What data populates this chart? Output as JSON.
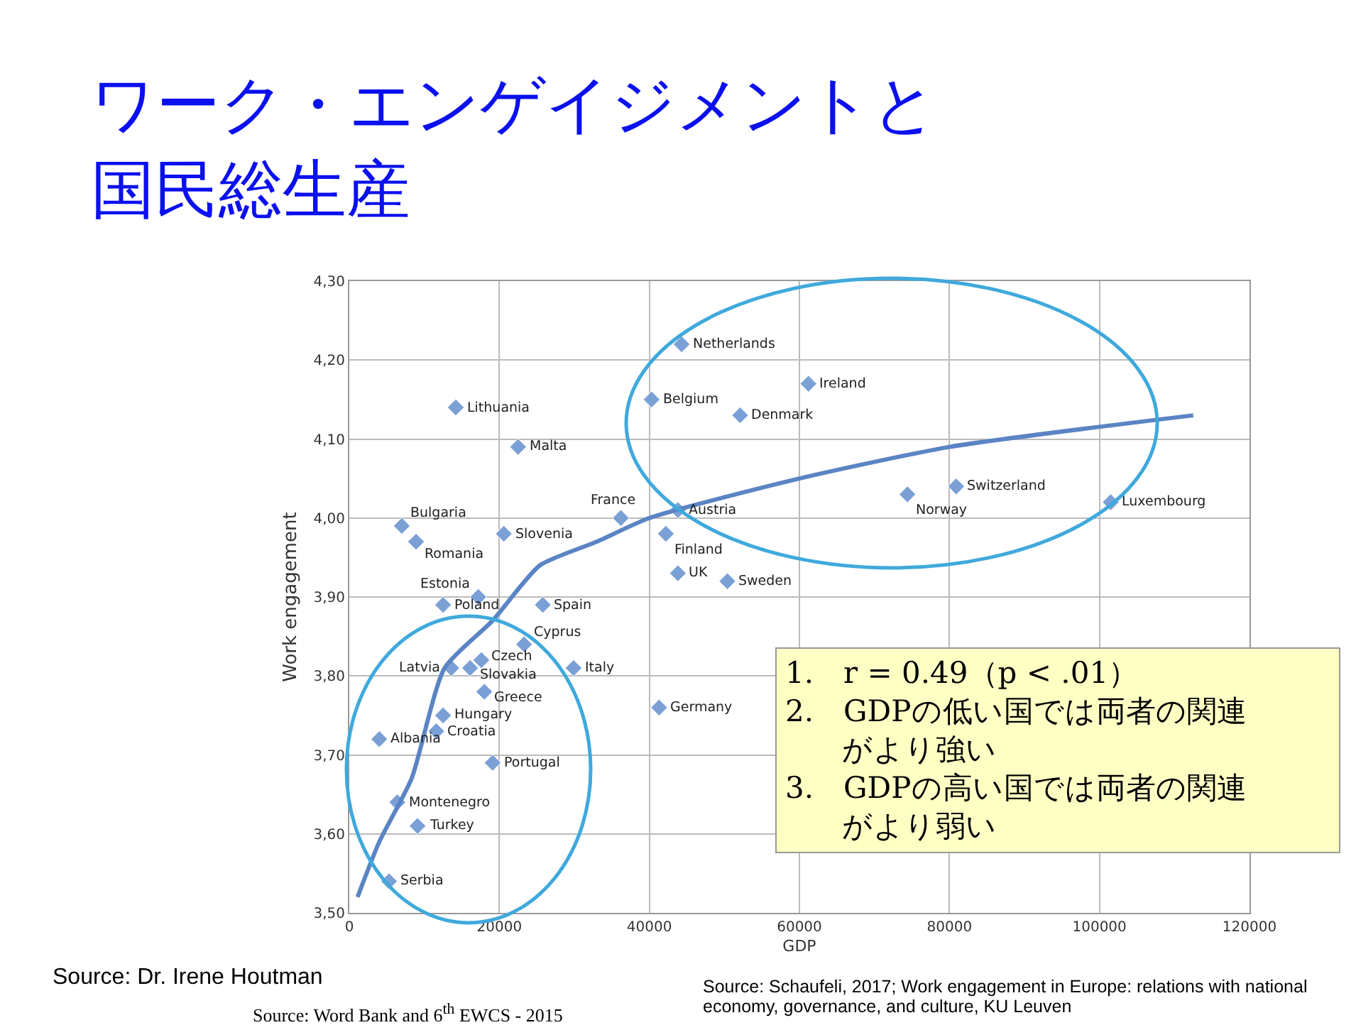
{
  "chart_data": {
    "type": "scatter",
    "title": "ワーク・エンゲイジメントと国民総生産",
    "xlabel": "GDP",
    "ylabel": "Work engagement",
    "xlim": [
      0,
      120000
    ],
    "xticks": [
      0,
      20000,
      40000,
      60000,
      80000,
      100000,
      120000
    ],
    "ylim": [
      3.5,
      4.3
    ],
    "yticks": [
      {
        "value": 3.5,
        "label": "3,50"
      },
      {
        "value": 3.6,
        "label": "3,60"
      },
      {
        "value": 3.7,
        "label": "3,70"
      },
      {
        "value": 3.8,
        "label": "3,80"
      },
      {
        "value": 3.9,
        "label": "3,90"
      },
      {
        "value": 4.0,
        "label": "4,00"
      },
      {
        "value": 4.1,
        "label": "4,10"
      },
      {
        "value": 4.2,
        "label": "4,20"
      },
      {
        "value": 4.3,
        "label": "4,30"
      }
    ],
    "grid": true,
    "marker": "diamond",
    "legend": false,
    "series": [
      {
        "name": "Netherlands",
        "color": "#7aa0d6",
        "x": [
          44300
        ],
        "values": [
          4.22
        ]
      },
      {
        "name": "Ireland",
        "color": "#7aa0d6",
        "x": [
          61200
        ],
        "values": [
          4.17
        ]
      },
      {
        "name": "Belgium",
        "color": "#7aa0d6",
        "x": [
          40300
        ],
        "values": [
          4.15
        ]
      },
      {
        "name": "Denmark",
        "color": "#7aa0d6",
        "x": [
          52100
        ],
        "values": [
          4.13
        ]
      },
      {
        "name": "Lithuania",
        "color": "#7aa0d6",
        "x": [
          14200
        ],
        "values": [
          4.14
        ]
      },
      {
        "name": "Malta",
        "color": "#7aa0d6",
        "x": [
          22500
        ],
        "values": [
          4.09
        ]
      },
      {
        "name": "France",
        "color": "#7aa0d6",
        "x": [
          36200
        ],
        "values": [
          4.0
        ]
      },
      {
        "name": "Austria",
        "color": "#7aa0d6",
        "x": [
          43800
        ],
        "values": [
          4.01
        ]
      },
      {
        "name": "Finland",
        "color": "#7aa0d6",
        "x": [
          42200
        ],
        "values": [
          3.98
        ]
      },
      {
        "name": "UK",
        "color": "#7aa0d6",
        "x": [
          43800
        ],
        "values": [
          3.93
        ]
      },
      {
        "name": "Sweden",
        "color": "#7aa0d6",
        "x": [
          50400
        ],
        "values": [
          3.92
        ]
      },
      {
        "name": "Norway",
        "color": "#7aa0d6",
        "x": [
          74400
        ],
        "values": [
          4.03
        ]
      },
      {
        "name": "Switzerland",
        "color": "#7aa0d6",
        "x": [
          80900
        ],
        "values": [
          4.04
        ]
      },
      {
        "name": "Luxembourg",
        "color": "#7aa0d6",
        "x": [
          101500
        ],
        "values": [
          4.02
        ]
      },
      {
        "name": "Bulgaria",
        "color": "#7aa0d6",
        "x": [
          7000
        ],
        "values": [
          3.99
        ]
      },
      {
        "name": "Romania",
        "color": "#7aa0d6",
        "x": [
          8900
        ],
        "values": [
          3.97
        ]
      },
      {
        "name": "Slovenia",
        "color": "#7aa0d6",
        "x": [
          20600
        ],
        "values": [
          3.98
        ]
      },
      {
        "name": "Estonia",
        "color": "#7aa0d6",
        "x": [
          17200
        ],
        "values": [
          3.9
        ]
      },
      {
        "name": "Poland",
        "color": "#7aa0d6",
        "x": [
          12500
        ],
        "values": [
          3.89
        ]
      },
      {
        "name": "Spain",
        "color": "#7aa0d6",
        "x": [
          25800
        ],
        "values": [
          3.89
        ]
      },
      {
        "name": "Cyprus",
        "color": "#7aa0d6",
        "x": [
          23300
        ],
        "values": [
          3.84
        ]
      },
      {
        "name": "Czech",
        "color": "#7aa0d6",
        "x": [
          17600
        ],
        "values": [
          3.82
        ]
      },
      {
        "name": "Latvia",
        "color": "#7aa0d6",
        "x": [
          13600
        ],
        "values": [
          3.81
        ]
      },
      {
        "name": "Slovakia",
        "color": "#7aa0d6",
        "x": [
          16100
        ],
        "values": [
          3.81
        ]
      },
      {
        "name": "Italy",
        "color": "#7aa0d6",
        "x": [
          29900
        ],
        "values": [
          3.81
        ]
      },
      {
        "name": "Greece",
        "color": "#7aa0d6",
        "x": [
          18000
        ],
        "values": [
          3.78
        ]
      },
      {
        "name": "Germany",
        "color": "#7aa0d6",
        "x": [
          41300
        ],
        "values": [
          3.76
        ]
      },
      {
        "name": "Hungary",
        "color": "#7aa0d6",
        "x": [
          12500
        ],
        "values": [
          3.75
        ]
      },
      {
        "name": "Croatia",
        "color": "#7aa0d6",
        "x": [
          11600
        ],
        "values": [
          3.73
        ]
      },
      {
        "name": "Albania",
        "color": "#7aa0d6",
        "x": [
          4000
        ],
        "values": [
          3.72
        ]
      },
      {
        "name": "Portugal",
        "color": "#7aa0d6",
        "x": [
          19100
        ],
        "values": [
          3.69
        ]
      },
      {
        "name": "Montenegro",
        "color": "#7aa0d6",
        "x": [
          6400
        ],
        "values": [
          3.64
        ]
      },
      {
        "name": "Turkey",
        "color": "#7aa0d6",
        "x": [
          9100
        ],
        "values": [
          3.61
        ]
      },
      {
        "name": "Serbia",
        "color": "#7aa0d6",
        "x": [
          5300
        ],
        "values": [
          3.54
        ]
      },
      {
        "type": "line",
        "color": "#5b84c4",
        "line_style": "solid",
        "marker": "none",
        "x": [
          1100,
          4000,
          8300,
          12700,
          19100,
          25400,
          33000,
          40000,
          60000,
          80000,
          112500
        ],
        "values": [
          3.52,
          3.59,
          3.67,
          3.81,
          3.87,
          3.94,
          3.97,
          4.0,
          4.05,
          4.09,
          4.13
        ]
      }
    ],
    "annotations": [
      "1.　r = 0.49（p < .01）",
      "2.　GDPの低い国では両者の関連がより強い",
      "3.　GDPの高い国では両者の関連がより弱い",
      "Source: Dr. Irene Houtman",
      "Source: Word Bank and 6$^{th}$ EWCS - 2015",
      "Source: Schaufeli, 2017; Work engagement in Europe: relations with national economy, governance, and culture, KU Leuven"
    ]
  }
}
